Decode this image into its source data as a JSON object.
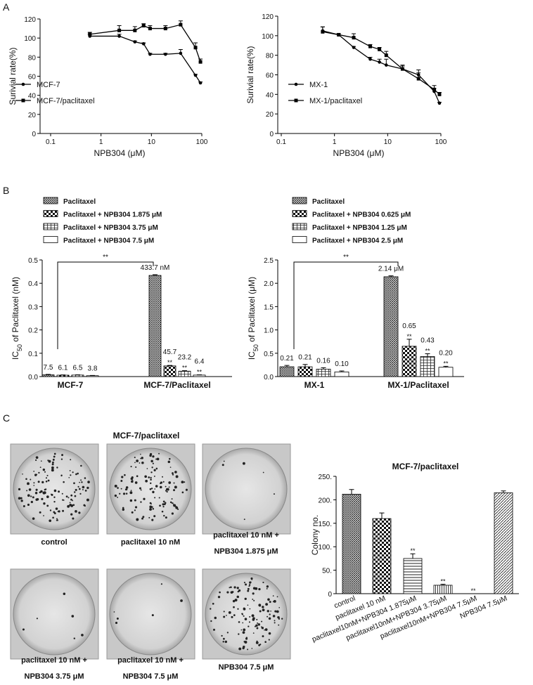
{
  "panel_labels": [
    "A",
    "B",
    "C"
  ],
  "photos": {
    "title": "MCF-7/paclitaxel",
    "captions": [
      [
        "control"
      ],
      [
        "paclitaxel 10 nM"
      ],
      [
        "paclitaxel 10 nM +",
        "NPB304 1.875 μM"
      ],
      [
        "paclitaxel 10 nM +",
        "NPB304 3.75 μM"
      ],
      [
        "paclitaxel 10 nM +",
        "NPB304 7.5 μM"
      ],
      [
        "NPB304 7.5  μM"
      ]
    ]
  },
  "chart_data": [
    {
      "type": "line",
      "xlabel": "NPB304 (μM)",
      "ylabel": "Surivial rate(%)",
      "log_x": true,
      "xlim": [
        0.1,
        100
      ],
      "xticks": [
        0.1,
        1,
        10,
        100
      ],
      "ylim": [
        0,
        120
      ],
      "yticks": [
        0,
        20,
        40,
        60,
        80,
        100,
        120
      ],
      "x": [
        0.6,
        2.3,
        4.7,
        7,
        9.4,
        19,
        38,
        75,
        94
      ],
      "series": [
        {
          "name": "MCF-7",
          "color": "#000000",
          "values": [
            102,
            102,
            96,
            94,
            83,
            83,
            84,
            61,
            53
          ],
          "errors": [
            2,
            2,
            1,
            1,
            1,
            1,
            4,
            1,
            1
          ]
        },
        {
          "name": "MCF-7/paclitaxel",
          "color": "#000000",
          "values": [
            104,
            108,
            108,
            113,
            110,
            110,
            114,
            90,
            75
          ],
          "errors": [
            2,
            5,
            4,
            2,
            3,
            3,
            4,
            5,
            3
          ]
        }
      ]
    },
    {
      "type": "line",
      "xlabel": "NPB304 (μM)",
      "ylabel": "Surivial rate(%)",
      "log_x": true,
      "xlim": [
        0.1,
        100
      ],
      "xticks": [
        0.1,
        1,
        10,
        100
      ],
      "ylim": [
        0,
        120
      ],
      "yticks": [
        0,
        20,
        40,
        60,
        80,
        100,
        120
      ],
      "x": [
        0.6,
        1.2,
        2.3,
        4.7,
        7,
        9.4,
        19,
        38,
        75,
        94
      ],
      "series": [
        {
          "name": "MX-1",
          "color": "#000000",
          "values": [
            105,
            101,
            88,
            76,
            73,
            70,
            66,
            60,
            43,
            31
          ],
          "errors": [
            4,
            1,
            1,
            2,
            3,
            6,
            3,
            5,
            3,
            1
          ]
        },
        {
          "name": "MX-1/paclitaxel",
          "color": "#000000",
          "values": [
            104,
            101,
            98,
            89,
            86,
            80,
            66,
            56,
            45,
            40
          ],
          "errors": [
            5,
            1,
            4,
            2,
            2,
            4,
            4,
            6,
            4,
            2
          ]
        }
      ]
    },
    {
      "type": "bar",
      "ylabel": [
        "IC",
        "50",
        " of Paclitaxel (nM)"
      ],
      "bracket_label": "**",
      "ylim": [
        0,
        0.5
      ],
      "yticks": [
        {
          "value": 0,
          "label": "0.0"
        },
        0.1,
        0.2,
        0.3,
        0.4,
        0.5
      ],
      "categories": [
        "MCF-7",
        "MCF-7/Paclitaxel"
      ],
      "series": [
        {
          "name": "Paclitaxel",
          "color": "#000000",
          "values": [
            0.0075,
            0.4337
          ],
          "errors": [
            0.002,
            0.003
          ],
          "value_labels": [
            "7.5",
            "433.7 nM"
          ],
          "significance": [
            null,
            null
          ]
        },
        {
          "name": "Paclitaxel + NPB304 1.875 μM",
          "color": "#000000",
          "values": [
            0.0061,
            0.0457
          ],
          "errors": [
            0.001,
            0.002
          ],
          "value_labels": [
            "6.1",
            "45.7"
          ],
          "significance": [
            null,
            "**"
          ]
        },
        {
          "name": "Paclitaxel + NPB304 3.75 μM",
          "color": "#000000",
          "values": [
            0.0065,
            0.0232
          ],
          "errors": [
            0.001,
            0.002
          ],
          "value_labels": [
            "6.5",
            "23.2"
          ],
          "significance": [
            null,
            "**"
          ]
        },
        {
          "name": "Paclitaxel + NPB304 7.5 μM",
          "color": "#000000",
          "values": [
            0.0038,
            0.0064
          ],
          "errors": [
            0.001,
            0.001
          ],
          "value_labels": [
            "3.8",
            "6.4"
          ],
          "significance": [
            null,
            "**"
          ]
        }
      ]
    },
    {
      "type": "bar",
      "ylabel": [
        "IC",
        "50",
        " of Paclitaxel (μM)"
      ],
      "bracket_label": "**",
      "ylim": [
        0,
        2.5
      ],
      "yticks": [
        {
          "value": 0,
          "label": "0.0"
        },
        0.5,
        {
          "value": 1,
          "label": "1.0"
        },
        1.5,
        {
          "value": 2,
          "label": "2.0"
        },
        2.5
      ],
      "categories": [
        "MX-1",
        "MX-1/Paclitaxel"
      ],
      "series": [
        {
          "name": "Paclitaxel",
          "color": "#000000",
          "values": [
            0.21,
            2.14
          ],
          "errors": [
            0.03,
            0.02
          ],
          "value_labels": [
            "0.21",
            "2.14 μM"
          ],
          "significance": [
            null,
            null
          ]
        },
        {
          "name": "Paclitaxel + NPB304 0.625 μM",
          "color": "#000000",
          "values": [
            0.21,
            0.65
          ],
          "errors": [
            0.05,
            0.15
          ],
          "value_labels": [
            "0.21",
            "0.65"
          ],
          "significance": [
            null,
            "**"
          ]
        },
        {
          "name": "Paclitaxel + NPB304 1.25 μM",
          "color": "#000000",
          "values": [
            0.16,
            0.43
          ],
          "errors": [
            0.03,
            0.06
          ],
          "value_labels": [
            "0.16",
            "0.43"
          ],
          "significance": [
            null,
            "**"
          ]
        },
        {
          "name": "Paclitaxel + NPB304 2.5 μM",
          "color": "#000000",
          "values": [
            0.1,
            0.2
          ],
          "errors": [
            0.02,
            0.02
          ],
          "value_labels": [
            "0.10",
            "0.20"
          ],
          "significance": [
            null,
            "**"
          ]
        }
      ]
    },
    {
      "type": "bar",
      "title": "MCF-7/paclitaxel",
      "ylabel": [
        "Colony no."
      ],
      "ylim": [
        0,
        250
      ],
      "yticks": [
        0,
        {
          "value": 50,
          "label": "50."
        },
        {
          "value": 100,
          "label": "100."
        },
        {
          "value": 150,
          "label": "150."
        },
        {
          "value": 200,
          "label": "200."
        },
        {
          "value": 250,
          "label": "250."
        }
      ],
      "categories": [
        "control",
        "paclitaxel 10 nM",
        "paclitaxel10nM+NPB304 1.875μM",
        "paclitaxel10nM+NPB304 3.75μM",
        "paclitaxel10nM+NPB304 7.5μM",
        "NPB304 7.5μM"
      ],
      "color": "#000000",
      "values": [
        212,
        160,
        75,
        18,
        0,
        215
      ],
      "errors": [
        10,
        12,
        10,
        2,
        0,
        4
      ],
      "significance": [
        null,
        null,
        "**",
        "**",
        "**",
        null
      ]
    }
  ]
}
